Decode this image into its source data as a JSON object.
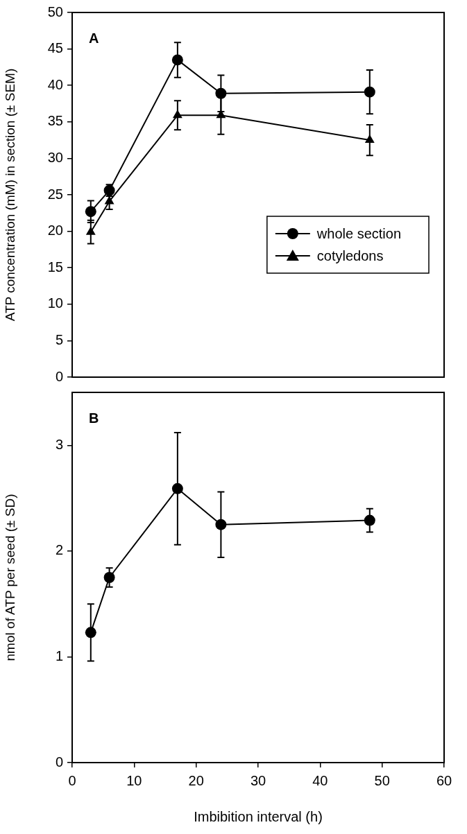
{
  "chart_data": [
    {
      "type": "line",
      "ylabel": "ATP concentration (mM) in section (± SEM)",
      "annotations": [
        "A"
      ],
      "legend": "bottom right",
      "tick_labels": "y",
      "x": [
        3,
        6,
        17,
        24,
        48
      ],
      "xlim": [
        0,
        60
      ],
      "xticks": [
        0,
        10,
        20,
        30,
        40,
        50,
        60
      ],
      "ylim": [
        0,
        50
      ],
      "yticks": [
        0,
        5,
        10,
        15,
        20,
        25,
        30,
        35,
        40,
        45,
        50
      ],
      "series": [
        {
          "name": "whole section",
          "color": "#000000",
          "marker": "circle",
          "values": [
            22.7,
            25.6,
            43.5,
            38.9,
            39.1
          ],
          "errors": [
            1.5,
            0.8,
            2.4,
            2.5,
            3.0
          ]
        },
        {
          "name": "cotyledons",
          "color": "#000000",
          "marker": "triangle",
          "values": [
            19.9,
            24.1,
            35.9,
            35.9,
            32.5
          ],
          "errors": [
            1.6,
            1.1,
            2.0,
            2.6,
            2.1
          ]
        }
      ]
    },
    {
      "type": "line",
      "ylabel": "nmol of ATP per seed (± SD)",
      "xlabel": "Imbibition interval (h)",
      "annotations": [
        "B"
      ],
      "x": [
        3,
        6,
        17,
        24,
        48
      ],
      "xlim": [
        0,
        60
      ],
      "xticks": [
        0,
        10,
        20,
        30,
        40,
        50,
        60
      ],
      "ylim": [
        0,
        3.5
      ],
      "yticks": [
        0,
        1,
        2,
        3
      ],
      "series": [
        {
          "color": "#000000",
          "marker": "circle",
          "values": [
            1.23,
            1.75,
            2.59,
            2.25,
            2.29
          ],
          "errors": [
            0.27,
            0.09,
            0.53,
            0.31,
            0.11
          ]
        }
      ]
    }
  ]
}
